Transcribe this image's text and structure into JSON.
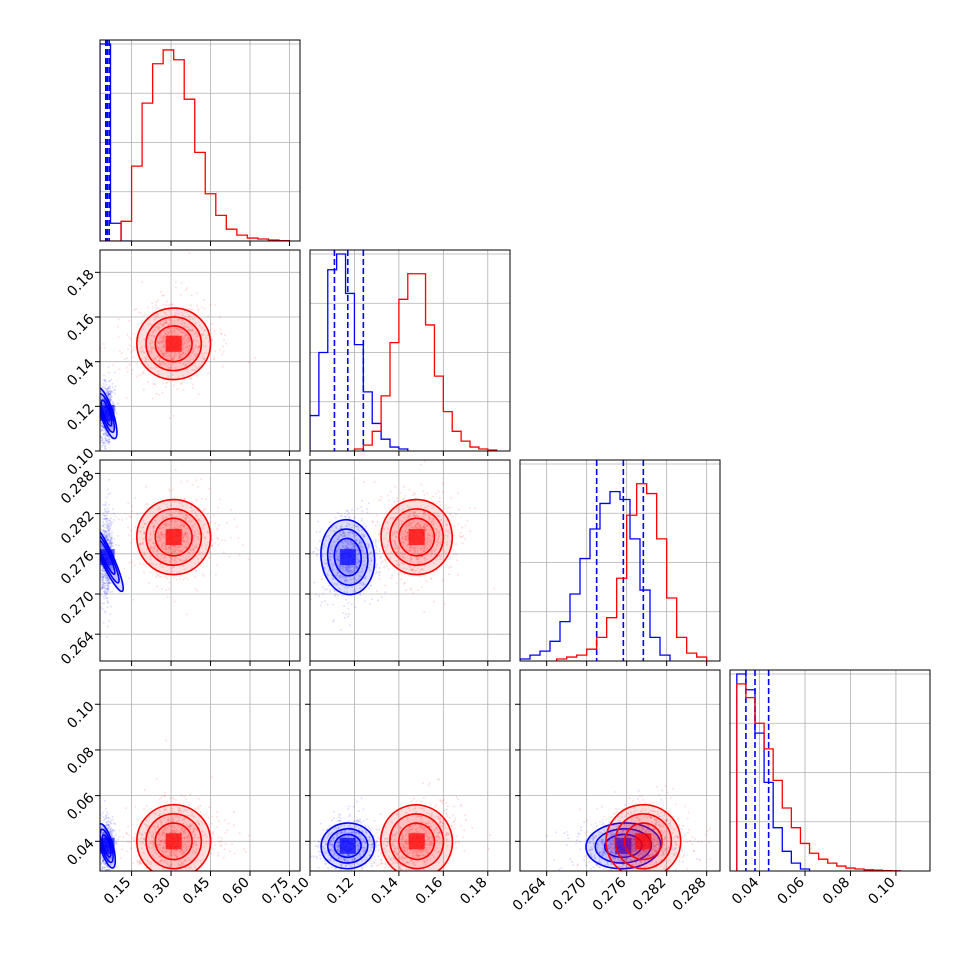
{
  "chart_data": {
    "type": "corner",
    "title": "",
    "parameters": [
      {
        "range": [
          0.03,
          0.79
        ],
        "ticks": [
          0.15,
          0.3,
          0.45,
          0.6,
          0.75
        ],
        "tick_labels": [
          "0.15",
          "0.30",
          "0.45",
          "0.60",
          "0.75"
        ]
      },
      {
        "range": [
          0.1,
          0.19
        ],
        "ticks": [
          0.1,
          0.12,
          0.14,
          0.16,
          0.18
        ],
        "tick_labels": [
          "0.10",
          "0.12",
          "0.14",
          "0.16",
          "0.18"
        ]
      },
      {
        "range": [
          0.26,
          0.29
        ],
        "ticks": [
          0.264,
          0.27,
          0.276,
          0.282,
          0.288
        ],
        "tick_labels": [
          "0.264",
          "0.270",
          "0.276",
          "0.282",
          "0.288"
        ]
      },
      {
        "range": [
          0.027,
          0.115
        ],
        "ticks": [
          0.04,
          0.06,
          0.08,
          0.1
        ],
        "tick_labels": [
          "0.04",
          "0.06",
          "0.08",
          "0.10"
        ]
      }
    ],
    "grid": true,
    "series": [
      {
        "color": "#0000ff",
        "quantiles": [
          [
            0.052,
            0.058,
            0.065
          ],
          [
            0.111,
            0.117,
            0.124
          ],
          [
            0.2715,
            0.2755,
            0.2785
          ],
          [
            0.034,
            0.038,
            0.044
          ]
        ],
        "histograms": [
          {
            "edges": [
              0.03,
              0.07,
              0.11,
              0.15
            ],
            "counts": [
              1.0,
              0.09,
              0.0
            ]
          },
          {
            "edges": [
              0.1,
              0.104,
              0.108,
              0.112,
              0.116,
              0.12,
              0.124,
              0.128,
              0.132,
              0.136,
              0.14,
              0.144
            ],
            "counts": [
              0.18,
              0.5,
              0.92,
              1.0,
              0.8,
              0.54,
              0.3,
              0.14,
              0.06,
              0.02,
              0.01
            ]
          },
          {
            "edges": [
              0.26,
              0.2615,
              0.263,
              0.2645,
              0.266,
              0.2675,
              0.269,
              0.2705,
              0.272,
              0.2735,
              0.275,
              0.2765,
              0.278,
              0.2795,
              0.281,
              0.2825
            ],
            "counts": [
              0.01,
              0.03,
              0.05,
              0.1,
              0.2,
              0.34,
              0.52,
              0.67,
              0.8,
              0.86,
              0.82,
              0.62,
              0.36,
              0.12,
              0.03
            ]
          },
          {
            "edges": [
              0.03,
              0.034,
              0.038,
              0.042,
              0.046,
              0.05,
              0.054,
              0.058,
              0.062
            ],
            "counts": [
              1.0,
              0.92,
              0.7,
              0.45,
              0.22,
              0.1,
              0.04,
              0.01
            ]
          }
        ],
        "centers": [
          0.055,
          0.117,
          0.2755,
          0.038
        ],
        "spreads": [
          0.012,
          0.006,
          0.0028,
          0.005
        ]
      },
      {
        "color": "#ff0000",
        "quantiles": [
          [],
          [],
          [],
          []
        ],
        "histograms": [
          {
            "edges": [
              0.03,
              0.07,
              0.11,
              0.15,
              0.19,
              0.23,
              0.27,
              0.31,
              0.35,
              0.39,
              0.43,
              0.47,
              0.51,
              0.55,
              0.59,
              0.63,
              0.67,
              0.71,
              0.75
            ],
            "counts": [
              0.0,
              0.0,
              0.1,
              0.38,
              0.7,
              0.9,
              0.97,
              0.92,
              0.72,
              0.45,
              0.24,
              0.13,
              0.06,
              0.03,
              0.015,
              0.01,
              0.005,
              0.002
            ]
          },
          {
            "edges": [
              0.12,
              0.124,
              0.128,
              0.132,
              0.136,
              0.14,
              0.144,
              0.148,
              0.152,
              0.156,
              0.16,
              0.164,
              0.168,
              0.172,
              0.176,
              0.18,
              0.184
            ],
            "counts": [
              0.01,
              0.03,
              0.1,
              0.28,
              0.55,
              0.77,
              0.9,
              0.9,
              0.64,
              0.38,
              0.2,
              0.1,
              0.05,
              0.02,
              0.01,
              0.005
            ]
          },
          {
            "edges": [
              0.2655,
              0.267,
              0.2685,
              0.27,
              0.2715,
              0.273,
              0.2745,
              0.276,
              0.2775,
              0.279,
              0.2805,
              0.282,
              0.2835,
              0.285,
              0.2865,
              0.288
            ],
            "counts": [
              0.01,
              0.02,
              0.03,
              0.06,
              0.12,
              0.22,
              0.42,
              0.74,
              0.9,
              0.85,
              0.62,
              0.32,
              0.12,
              0.04,
              0.02
            ]
          },
          {
            "edges": [
              0.03,
              0.034,
              0.038,
              0.042,
              0.046,
              0.05,
              0.054,
              0.058,
              0.062,
              0.066,
              0.07,
              0.074,
              0.078,
              0.082,
              0.086,
              0.09,
              0.094,
              0.098,
              0.102
            ],
            "counts": [
              0.95,
              0.88,
              0.75,
              0.62,
              0.46,
              0.32,
              0.22,
              0.14,
              0.09,
              0.06,
              0.04,
              0.025,
              0.015,
              0.01,
              0.006,
              0.004,
              0.002,
              0.001
            ]
          }
        ],
        "centers": [
          0.31,
          0.148,
          0.2785,
          0.04
        ],
        "spreads": [
          0.07,
          0.008,
          0.0028,
          0.008
        ]
      }
    ]
  }
}
